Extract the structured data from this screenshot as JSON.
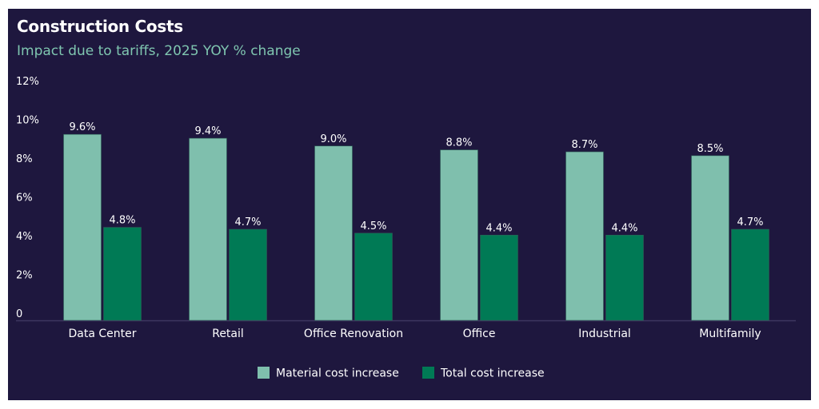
{
  "chart_data": {
    "type": "bar",
    "title": "Construction Costs",
    "subtitle": "Impact due to tariffs, 2025 YOY % change",
    "xlabel": "",
    "ylabel": "",
    "ylim": [
      0,
      12
    ],
    "yticks": [
      0,
      2,
      4,
      6,
      8,
      10,
      12
    ],
    "ytick_labels": [
      "0",
      "2%",
      "4%",
      "6%",
      "8%",
      "10%",
      "12%"
    ],
    "grid": false,
    "legend_position": "bottom-center",
    "categories": [
      "Data Center",
      "Retail",
      "Office Renovation",
      "Office",
      "Industrial",
      "Multifamily"
    ],
    "series": [
      {
        "name": "Material cost increase",
        "color": "#7fbfad",
        "values": [
          9.6,
          9.4,
          9.0,
          8.8,
          8.7,
          8.5
        ],
        "labels": [
          "9.6%",
          "9.4%",
          "9.0%",
          "8.8%",
          "8.7%",
          "8.5%"
        ]
      },
      {
        "name": "Total cost increase",
        "color": "#007a55",
        "values": [
          4.8,
          4.7,
          4.5,
          4.4,
          4.4,
          4.7
        ],
        "labels": [
          "4.8%",
          "4.7%",
          "4.5%",
          "4.4%",
          "4.4%",
          "4.7%"
        ]
      }
    ]
  },
  "colors": {
    "background": "#1e173e",
    "title": "#ffffff",
    "subtitle": "#7fc6b0",
    "axis_line": "#3d3760"
  }
}
